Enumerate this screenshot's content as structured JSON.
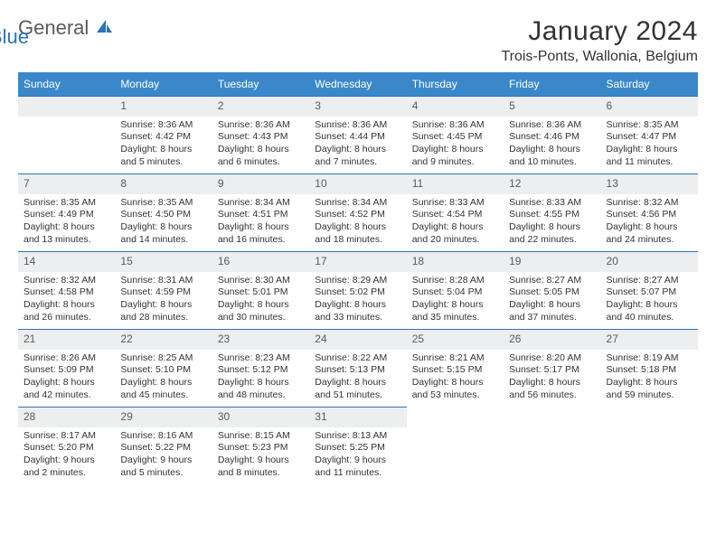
{
  "logo": {
    "part1": "General",
    "part2": "Blue"
  },
  "title": "January 2024",
  "location": "Trois-Ponts, Wallonia, Belgium",
  "colors": {
    "header_bg": "#3a88c9",
    "accent": "#2b74b8",
    "daynum_bg": "#eceeef",
    "text": "#333333",
    "logo_gray": "#5a5a5a"
  },
  "weekdays": [
    "Sunday",
    "Monday",
    "Tuesday",
    "Wednesday",
    "Thursday",
    "Friday",
    "Saturday"
  ],
  "weeks": [
    [
      null,
      {
        "n": "1",
        "sr": "Sunrise: 8:36 AM",
        "ss": "Sunset: 4:42 PM",
        "d1": "Daylight: 8 hours",
        "d2": "and 5 minutes."
      },
      {
        "n": "2",
        "sr": "Sunrise: 8:36 AM",
        "ss": "Sunset: 4:43 PM",
        "d1": "Daylight: 8 hours",
        "d2": "and 6 minutes."
      },
      {
        "n": "3",
        "sr": "Sunrise: 8:36 AM",
        "ss": "Sunset: 4:44 PM",
        "d1": "Daylight: 8 hours",
        "d2": "and 7 minutes."
      },
      {
        "n": "4",
        "sr": "Sunrise: 8:36 AM",
        "ss": "Sunset: 4:45 PM",
        "d1": "Daylight: 8 hours",
        "d2": "and 9 minutes."
      },
      {
        "n": "5",
        "sr": "Sunrise: 8:36 AM",
        "ss": "Sunset: 4:46 PM",
        "d1": "Daylight: 8 hours",
        "d2": "and 10 minutes."
      },
      {
        "n": "6",
        "sr": "Sunrise: 8:35 AM",
        "ss": "Sunset: 4:47 PM",
        "d1": "Daylight: 8 hours",
        "d2": "and 11 minutes."
      }
    ],
    [
      {
        "n": "7",
        "sr": "Sunrise: 8:35 AM",
        "ss": "Sunset: 4:49 PM",
        "d1": "Daylight: 8 hours",
        "d2": "and 13 minutes."
      },
      {
        "n": "8",
        "sr": "Sunrise: 8:35 AM",
        "ss": "Sunset: 4:50 PM",
        "d1": "Daylight: 8 hours",
        "d2": "and 14 minutes."
      },
      {
        "n": "9",
        "sr": "Sunrise: 8:34 AM",
        "ss": "Sunset: 4:51 PM",
        "d1": "Daylight: 8 hours",
        "d2": "and 16 minutes."
      },
      {
        "n": "10",
        "sr": "Sunrise: 8:34 AM",
        "ss": "Sunset: 4:52 PM",
        "d1": "Daylight: 8 hours",
        "d2": "and 18 minutes."
      },
      {
        "n": "11",
        "sr": "Sunrise: 8:33 AM",
        "ss": "Sunset: 4:54 PM",
        "d1": "Daylight: 8 hours",
        "d2": "and 20 minutes."
      },
      {
        "n": "12",
        "sr": "Sunrise: 8:33 AM",
        "ss": "Sunset: 4:55 PM",
        "d1": "Daylight: 8 hours",
        "d2": "and 22 minutes."
      },
      {
        "n": "13",
        "sr": "Sunrise: 8:32 AM",
        "ss": "Sunset: 4:56 PM",
        "d1": "Daylight: 8 hours",
        "d2": "and 24 minutes."
      }
    ],
    [
      {
        "n": "14",
        "sr": "Sunrise: 8:32 AM",
        "ss": "Sunset: 4:58 PM",
        "d1": "Daylight: 8 hours",
        "d2": "and 26 minutes."
      },
      {
        "n": "15",
        "sr": "Sunrise: 8:31 AM",
        "ss": "Sunset: 4:59 PM",
        "d1": "Daylight: 8 hours",
        "d2": "and 28 minutes."
      },
      {
        "n": "16",
        "sr": "Sunrise: 8:30 AM",
        "ss": "Sunset: 5:01 PM",
        "d1": "Daylight: 8 hours",
        "d2": "and 30 minutes."
      },
      {
        "n": "17",
        "sr": "Sunrise: 8:29 AM",
        "ss": "Sunset: 5:02 PM",
        "d1": "Daylight: 8 hours",
        "d2": "and 33 minutes."
      },
      {
        "n": "18",
        "sr": "Sunrise: 8:28 AM",
        "ss": "Sunset: 5:04 PM",
        "d1": "Daylight: 8 hours",
        "d2": "and 35 minutes."
      },
      {
        "n": "19",
        "sr": "Sunrise: 8:27 AM",
        "ss": "Sunset: 5:05 PM",
        "d1": "Daylight: 8 hours",
        "d2": "and 37 minutes."
      },
      {
        "n": "20",
        "sr": "Sunrise: 8:27 AM",
        "ss": "Sunset: 5:07 PM",
        "d1": "Daylight: 8 hours",
        "d2": "and 40 minutes."
      }
    ],
    [
      {
        "n": "21",
        "sr": "Sunrise: 8:26 AM",
        "ss": "Sunset: 5:09 PM",
        "d1": "Daylight: 8 hours",
        "d2": "and 42 minutes."
      },
      {
        "n": "22",
        "sr": "Sunrise: 8:25 AM",
        "ss": "Sunset: 5:10 PM",
        "d1": "Daylight: 8 hours",
        "d2": "and 45 minutes."
      },
      {
        "n": "23",
        "sr": "Sunrise: 8:23 AM",
        "ss": "Sunset: 5:12 PM",
        "d1": "Daylight: 8 hours",
        "d2": "and 48 minutes."
      },
      {
        "n": "24",
        "sr": "Sunrise: 8:22 AM",
        "ss": "Sunset: 5:13 PM",
        "d1": "Daylight: 8 hours",
        "d2": "and 51 minutes."
      },
      {
        "n": "25",
        "sr": "Sunrise: 8:21 AM",
        "ss": "Sunset: 5:15 PM",
        "d1": "Daylight: 8 hours",
        "d2": "and 53 minutes."
      },
      {
        "n": "26",
        "sr": "Sunrise: 8:20 AM",
        "ss": "Sunset: 5:17 PM",
        "d1": "Daylight: 8 hours",
        "d2": "and 56 minutes."
      },
      {
        "n": "27",
        "sr": "Sunrise: 8:19 AM",
        "ss": "Sunset: 5:18 PM",
        "d1": "Daylight: 8 hours",
        "d2": "and 59 minutes."
      }
    ],
    [
      {
        "n": "28",
        "sr": "Sunrise: 8:17 AM",
        "ss": "Sunset: 5:20 PM",
        "d1": "Daylight: 9 hours",
        "d2": "and 2 minutes."
      },
      {
        "n": "29",
        "sr": "Sunrise: 8:16 AM",
        "ss": "Sunset: 5:22 PM",
        "d1": "Daylight: 9 hours",
        "d2": "and 5 minutes."
      },
      {
        "n": "30",
        "sr": "Sunrise: 8:15 AM",
        "ss": "Sunset: 5:23 PM",
        "d1": "Daylight: 9 hours",
        "d2": "and 8 minutes."
      },
      {
        "n": "31",
        "sr": "Sunrise: 8:13 AM",
        "ss": "Sunset: 5:25 PM",
        "d1": "Daylight: 9 hours",
        "d2": "and 11 minutes."
      },
      null,
      null,
      null
    ]
  ]
}
